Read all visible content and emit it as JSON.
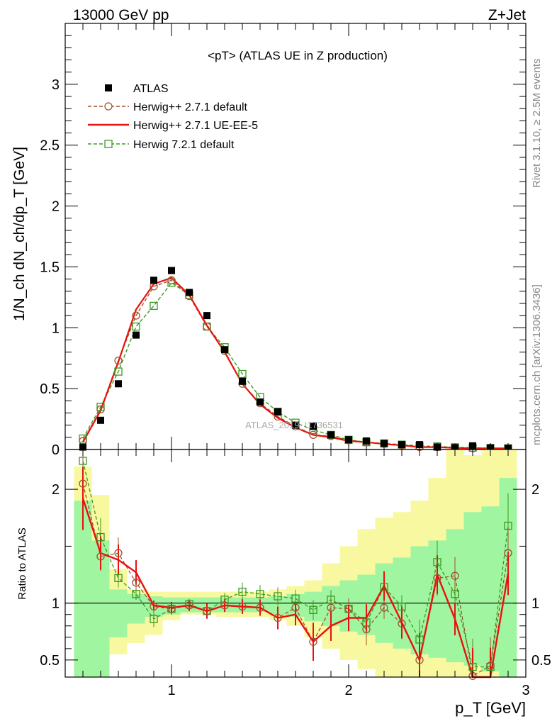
{
  "header": {
    "left": "13000 GeV pp",
    "right": "Z+Jet"
  },
  "side_labels": {
    "rivet": "Rivet 3.1.10, ≥ 2.5M events",
    "mcplots": "mcplots.cern.ch [arXiv:1306.3436]"
  },
  "watermark": "ATLAS_2019_I1736531",
  "colors": {
    "atlas": "#000000",
    "herwig_pp_default": "#a0522d",
    "herwig_pp_ueee5": "#e8110f",
    "herwig7_default": "#3a9a22",
    "band_green": "#a0f5a0",
    "band_yellow": "#f8f8a0"
  },
  "chart_data": [
    {
      "type": "line",
      "title": "<pT> (ATLAS UE in Z production)",
      "xlabel": "p_T [GeV]",
      "ylabel": "1/N_ch dN_ch/dp_T [GeV]",
      "xlim": [
        0.4,
        3.0
      ],
      "ylim": [
        0,
        3.5
      ],
      "yticks": [
        "0",
        "0.5",
        "1",
        "1.5",
        "2",
        "2.5",
        "3"
      ],
      "legend_position": "top-left",
      "x": [
        0.5,
        0.6,
        0.7,
        0.8,
        0.9,
        1.0,
        1.1,
        1.2,
        1.3,
        1.4,
        1.5,
        1.6,
        1.7,
        1.8,
        1.9,
        2.0,
        2.1,
        2.2,
        2.3,
        2.4,
        2.5,
        2.6,
        2.7,
        2.8,
        2.9
      ],
      "series": [
        {
          "name": "ATLAS",
          "style": "markers",
          "values": [
            0.02,
            0.24,
            0.54,
            0.94,
            1.39,
            1.47,
            1.29,
            1.1,
            0.82,
            0.56,
            0.39,
            0.31,
            0.2,
            0.19,
            0.12,
            0.08,
            0.07,
            0.05,
            0.04,
            0.04,
            0.02,
            0.015,
            0.03,
            0.015,
            0.01
          ]
        },
        {
          "name": "Herwig++ 2.7.1 default",
          "style": "dashed-circles",
          "values": [
            0.07,
            0.33,
            0.73,
            1.1,
            1.34,
            1.39,
            1.26,
            1.01,
            0.81,
            0.54,
            0.38,
            0.27,
            0.19,
            0.12,
            0.11,
            0.075,
            0.06,
            0.045,
            0.035,
            0.02,
            0.02,
            0.015,
            0.01,
            0.01,
            0.01
          ]
        },
        {
          "name": "Herwig++ 2.7.1 UE-EE-5",
          "style": "solid",
          "values": [
            0.06,
            0.32,
            0.72,
            1.15,
            1.36,
            1.41,
            1.27,
            1.02,
            0.8,
            0.54,
            0.37,
            0.26,
            0.18,
            0.12,
            0.1,
            0.07,
            0.06,
            0.045,
            0.035,
            0.02,
            0.02,
            0.013,
            0.01,
            0.01,
            0.01
          ]
        },
        {
          "name": "Herwig 7.2.1 default",
          "style": "dashed-squares",
          "values": [
            0.09,
            0.35,
            0.64,
            1.01,
            1.18,
            1.37,
            1.27,
            1.01,
            0.84,
            0.62,
            0.43,
            0.31,
            0.22,
            0.16,
            0.12,
            0.08,
            0.06,
            0.05,
            0.04,
            0.03,
            0.025,
            0.018,
            0.015,
            0.01,
            0.01
          ]
        }
      ]
    },
    {
      "type": "line",
      "ylabel": "Ratio to ATLAS",
      "xlabel": "p_T [GeV]",
      "xlim": [
        0.4,
        3.0
      ],
      "ylim": [
        0.35,
        2.35
      ],
      "yticks": [
        "0.5",
        "1",
        "2"
      ],
      "xticks": [
        "1",
        "2",
        "3"
      ],
      "x": [
        0.5,
        0.6,
        0.7,
        0.8,
        0.9,
        1.0,
        1.1,
        1.2,
        1.3,
        1.4,
        1.5,
        1.6,
        1.7,
        1.8,
        1.9,
        2.0,
        2.1,
        2.2,
        2.3,
        2.4,
        2.5,
        2.6,
        2.7,
        2.8,
        2.9
      ],
      "bands": {
        "green_upper": [
          1.9,
          1.55,
          1.12,
          1.08,
          1.06,
          1.05,
          1.05,
          1.05,
          1.05,
          1.05,
          1.05,
          1.06,
          1.08,
          1.1,
          1.15,
          1.2,
          1.25,
          1.35,
          1.4,
          1.5,
          1.55,
          1.65,
          1.8,
          1.85,
          2.1
        ],
        "green_lower": [
          0.35,
          0.35,
          0.7,
          0.82,
          0.88,
          0.9,
          0.92,
          0.92,
          0.92,
          0.92,
          0.92,
          0.9,
          0.88,
          0.84,
          0.8,
          0.75,
          0.72,
          0.65,
          0.6,
          0.55,
          0.52,
          0.48,
          0.45,
          0.4,
          0.35
        ],
        "yellow_upper": [
          2.2,
          1.95,
          1.3,
          1.12,
          1.1,
          1.1,
          1.1,
          1.1,
          1.1,
          1.1,
          1.1,
          1.12,
          1.15,
          1.2,
          1.35,
          1.5,
          1.65,
          1.75,
          1.8,
          1.9,
          2.1,
          2.35,
          2.3,
          2.35,
          2.35
        ],
        "yellow_lower": [
          0.35,
          0.35,
          0.55,
          0.65,
          0.72,
          0.85,
          0.9,
          0.9,
          0.88,
          0.88,
          0.88,
          0.85,
          0.8,
          0.7,
          0.6,
          0.5,
          0.42,
          0.35,
          0.35,
          0.35,
          0.35,
          0.35,
          0.35,
          0.35,
          0.35
        ]
      },
      "series": [
        {
          "name": "Herwig++ 2.7.1 default",
          "style": "dashed-circles",
          "values": [
            2.05,
            1.41,
            1.44,
            1.18,
            0.97,
            0.95,
            0.98,
            0.93,
            0.98,
            0.97,
            0.96,
            0.87,
            0.96,
            0.66,
            0.96,
            0.95,
            0.77,
            0.96,
            0.82,
            0.5,
            1.22,
            1.24,
            0.36,
            0.45,
            1.44
          ]
        },
        {
          "name": "Herwig++ 2.7.1 UE-EE-5",
          "style": "solid",
          "values": [
            1.92,
            1.44,
            1.38,
            1.27,
            0.98,
            0.96,
            0.98,
            0.93,
            0.98,
            0.97,
            0.96,
            0.87,
            0.9,
            0.66,
            0.8,
            0.87,
            0.87,
            1.15,
            0.83,
            0.5,
            1.25,
            0.86,
            0.3,
            0.3,
            1.26
          ]
        },
        {
          "name": "Herwig 7.2.1 default",
          "style": "dashed-squares",
          "values": [
            2.25,
            1.58,
            1.22,
            1.08,
            0.86,
            0.95,
            0.99,
            0.93,
            1.03,
            1.1,
            1.08,
            1.06,
            1.04,
            0.94,
            1.03,
            0.95,
            0.83,
            1.14,
            0.97,
            0.68,
            1.36,
            1.08,
            0.44,
            0.44,
            1.68
          ]
        }
      ]
    }
  ]
}
